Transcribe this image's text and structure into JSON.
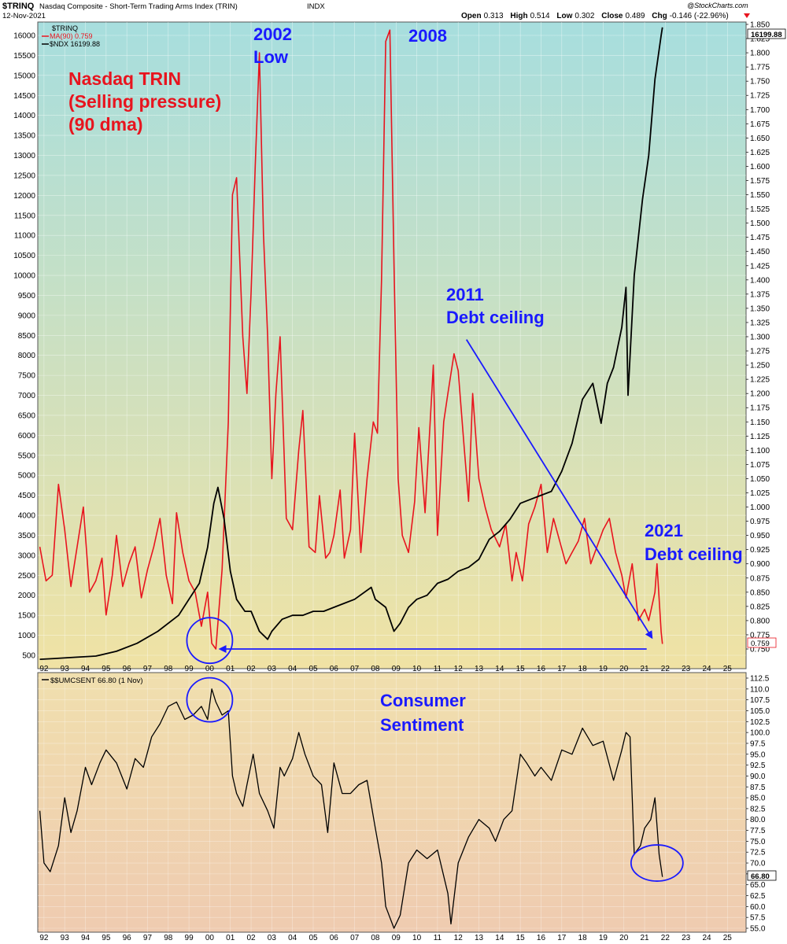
{
  "header": {
    "symbol": "$TRINQ",
    "title": "Nasdaq Composite - Short-Term Trading Arms Index (TRIN)",
    "exchange": "INDX",
    "date": "12-Nov-2021",
    "open_label": "Open",
    "open": "0.313",
    "high_label": "High",
    "high": "0.514",
    "low_label": "Low",
    "low": "0.302",
    "close_label": "Close",
    "close": "0.489",
    "chg_label": "Chg",
    "chg": "-0.146 (-22.96%)",
    "chg_icon": "triangle-down-icon",
    "watermark": "@StockCharts.com"
  },
  "legend_top": {
    "line1": "$TRINQ",
    "line2": "MA(90) 0.759",
    "line3": "$NDX 16199.88"
  },
  "legend_bottom": {
    "line1": "$$UMCSENT 66.80 (1 Nov)"
  },
  "badges": {
    "ndx_last": "16199.88",
    "ma_last": "0.759",
    "umcsent_last": "66.80"
  },
  "annotations": {
    "title_line1": "Nasdaq TRIN",
    "title_line2": "(Selling pressure)",
    "title_line3": "(90 dma)",
    "y2002_line1": "2002",
    "y2002_line2": "Low",
    "y2008": "2008",
    "y2011_line1": "2011",
    "y2011_line2": "Debt ceiling",
    "y2021_line1": "2021",
    "y2021_line2": "Debt ceiling",
    "cs_line1": "Consumer",
    "cs_line2": "Sentiment"
  },
  "colors": {
    "trin_ma": "#e8141e",
    "ndx": "#000000",
    "annotation_blue": "#1a1aff",
    "annotation_red": "#e8141e",
    "top_bg_top": "#a7dede",
    "top_bg_bottom": "#f0e2a4",
    "bottom_bg_top": "#f0dfae",
    "bottom_bg_bottom": "#efcbb0"
  },
  "chart_data": [
    {
      "type": "line",
      "panel": "top",
      "x_tick_labels": [
        "92",
        "93",
        "94",
        "95",
        "96",
        "97",
        "98",
        "99",
        "00",
        "01",
        "02",
        "03",
        "04",
        "05",
        "06",
        "07",
        "08",
        "09",
        "10",
        "11",
        "12",
        "13",
        "14",
        "15",
        "16",
        "17",
        "18",
        "19",
        "20",
        "21",
        "22",
        "23",
        "24",
        "25"
      ],
      "xlim": [
        1991.7,
        2025.9
      ],
      "left_axis": {
        "series": "$NDX",
        "ylim": [
          250,
          16450
        ],
        "ticks": [
          "500",
          "1000",
          "1500",
          "2000",
          "2500",
          "3000",
          "3500",
          "4000",
          "4500",
          "5000",
          "5500",
          "6000",
          "6500",
          "7000",
          "7500",
          "8000",
          "8500",
          "9000",
          "9500",
          "10000",
          "10500",
          "11000",
          "11500",
          "12000",
          "12500",
          "13000",
          "13500",
          "14000",
          "14500",
          "15000",
          "15500",
          "16000"
        ]
      },
      "right_axis": {
        "series": "MA(90)",
        "ylim": [
          0.735,
          1.85
        ],
        "ticks": [
          "0.750",
          "0.775",
          "0.800",
          "0.825",
          "0.850",
          "0.875",
          "0.900",
          "0.925",
          "0.950",
          "0.975",
          "1.000",
          "1.025",
          "1.050",
          "1.075",
          "1.100",
          "1.125",
          "1.150",
          "1.175",
          "1.200",
          "1.225",
          "1.250",
          "1.275",
          "1.300",
          "1.325",
          "1.350",
          "1.375",
          "1.400",
          "1.425",
          "1.450",
          "1.475",
          "1.500",
          "1.525",
          "1.550",
          "1.575",
          "1.600",
          "1.625",
          "1.650",
          "1.675",
          "1.700",
          "1.725",
          "1.750",
          "1.775",
          "1.800",
          "1.825",
          "1.850"
        ]
      },
      "series": [
        {
          "name": "$NDX",
          "axis": "left",
          "x": [
            1991.8,
            1992.5,
            1993.5,
            1994.5,
            1995.5,
            1996.5,
            1997.5,
            1998.5,
            1999.0,
            1999.5,
            1999.9,
            2000.2,
            2000.4,
            2000.7,
            2001.0,
            2001.3,
            2001.7,
            2002.0,
            2002.4,
            2002.8,
            2003.0,
            2003.5,
            2004.0,
            2004.5,
            2005.0,
            2005.5,
            2006.0,
            2006.5,
            2007.0,
            2007.8,
            2008.0,
            2008.5,
            2008.9,
            2009.2,
            2009.6,
            2010.0,
            2010.5,
            2011.0,
            2011.5,
            2012.0,
            2012.5,
            2013.0,
            2013.5,
            2014.0,
            2014.5,
            2015.0,
            2015.5,
            2016.0,
            2016.5,
            2017.0,
            2017.5,
            2018.0,
            2018.5,
            2018.9,
            2019.2,
            2019.5,
            2019.9,
            2020.1,
            2020.2,
            2020.5,
            2020.9,
            2021.2,
            2021.5,
            2021.8,
            2021.86
          ],
          "y": [
            400,
            420,
            450,
            480,
            600,
            800,
            1100,
            1500,
            1900,
            2300,
            3200,
            4300,
            4700,
            3900,
            2600,
            1900,
            1600,
            1600,
            1100,
            900,
            1100,
            1400,
            1500,
            1500,
            1600,
            1600,
            1700,
            1800,
            1900,
            2200,
            1900,
            1700,
            1100,
            1300,
            1700,
            1900,
            2000,
            2300,
            2400,
            2600,
            2700,
            2900,
            3400,
            3600,
            3900,
            4300,
            4400,
            4500,
            4600,
            5100,
            5800,
            6900,
            7300,
            6300,
            7300,
            7700,
            8700,
            9700,
            7000,
            10000,
            11900,
            13000,
            14900,
            16000,
            16199.88
          ]
        },
        {
          "name": "MA(90)",
          "axis": "right",
          "x": [
            1991.8,
            1992.1,
            1992.4,
            1992.7,
            1993.0,
            1993.3,
            1993.6,
            1993.9,
            1994.2,
            1994.5,
            1994.8,
            1995.0,
            1995.3,
            1995.5,
            1995.8,
            1996.1,
            1996.4,
            1996.7,
            1997.0,
            1997.3,
            1997.6,
            1997.9,
            1998.2,
            1998.4,
            1998.7,
            1999.0,
            1999.3,
            1999.6,
            1999.9,
            2000.1,
            2000.3,
            2000.6,
            2000.9,
            2001.1,
            2001.3,
            2001.6,
            2001.8,
            2002.0,
            2002.2,
            2002.4,
            2002.6,
            2002.8,
            2003.0,
            2003.2,
            2003.4,
            2003.7,
            2004.0,
            2004.3,
            2004.5,
            2004.8,
            2005.1,
            2005.3,
            2005.6,
            2005.8,
            2006.0,
            2006.3,
            2006.5,
            2006.8,
            2007.0,
            2007.3,
            2007.6,
            2007.9,
            2008.1,
            2008.3,
            2008.5,
            2008.7,
            2008.9,
            2009.1,
            2009.3,
            2009.6,
            2009.9,
            2010.1,
            2010.4,
            2010.6,
            2010.8,
            2011.0,
            2011.3,
            2011.5,
            2011.8,
            2012.0,
            2012.3,
            2012.5,
            2012.7,
            2013.0,
            2013.3,
            2013.6,
            2014.0,
            2014.3,
            2014.6,
            2014.8,
            2015.1,
            2015.4,
            2015.7,
            2016.0,
            2016.3,
            2016.6,
            2016.9,
            2017.2,
            2017.5,
            2017.8,
            2018.1,
            2018.4,
            2018.7,
            2019.0,
            2019.3,
            2019.6,
            2019.9,
            2020.1,
            2020.4,
            2020.7,
            2021.0,
            2021.2,
            2021.5,
            2021.6,
            2021.8,
            2021.86
          ],
          "y": [
            0.93,
            0.87,
            0.88,
            1.04,
            0.96,
            0.86,
            0.93,
            1.0,
            0.85,
            0.87,
            0.91,
            0.81,
            0.88,
            0.95,
            0.86,
            0.9,
            0.93,
            0.84,
            0.89,
            0.93,
            0.98,
            0.88,
            0.83,
            0.99,
            0.92,
            0.87,
            0.85,
            0.79,
            0.85,
            0.76,
            0.75,
            0.89,
            1.15,
            1.55,
            1.58,
            1.3,
            1.2,
            1.38,
            1.6,
            1.8,
            1.48,
            1.3,
            1.05,
            1.2,
            1.3,
            0.98,
            0.96,
            1.1,
            1.17,
            0.93,
            0.92,
            1.02,
            0.91,
            0.92,
            0.95,
            1.03,
            0.91,
            0.96,
            1.13,
            0.92,
            1.05,
            1.15,
            1.13,
            1.4,
            1.82,
            1.84,
            1.43,
            1.05,
            0.95,
            0.92,
            1.01,
            1.14,
            0.99,
            1.12,
            1.25,
            0.95,
            1.15,
            1.2,
            1.27,
            1.24,
            1.1,
            1.01,
            1.2,
            1.05,
            1.0,
            0.96,
            0.93,
            0.97,
            0.87,
            0.92,
            0.87,
            0.97,
            1.0,
            1.04,
            0.92,
            0.98,
            0.94,
            0.9,
            0.92,
            0.94,
            0.98,
            0.9,
            0.93,
            0.96,
            0.98,
            0.92,
            0.88,
            0.84,
            0.9,
            0.8,
            0.82,
            0.8,
            0.85,
            0.9,
            0.78,
            0.759
          ]
        }
      ],
      "arrows": [
        {
          "from": [
            2012.4,
            1.295
          ],
          "to": [
            2021.35,
            0.77
          ]
        },
        {
          "from": [
            2021.1,
            0.75
          ],
          "to": [
            2000.5,
            0.75
          ]
        }
      ],
      "circles": [
        {
          "cx": 2000.0,
          "cy": 0.765
        }
      ]
    },
    {
      "type": "line",
      "panel": "bottom",
      "x_tick_labels": [
        "92",
        "93",
        "94",
        "95",
        "96",
        "97",
        "98",
        "99",
        "00",
        "01",
        "02",
        "03",
        "04",
        "05",
        "06",
        "07",
        "08",
        "09",
        "10",
        "11",
        "12",
        "13",
        "14",
        "15",
        "16",
        "17",
        "18",
        "19",
        "20",
        "21",
        "22",
        "23",
        "24",
        "25"
      ],
      "xlim": [
        1991.7,
        2025.9
      ],
      "ylim": [
        54.5,
        113
      ],
      "y_ticks": [
        "55.0",
        "57.5",
        "60.0",
        "62.5",
        "65.0",
        "67.5",
        "70.0",
        "72.5",
        "75.0",
        "77.5",
        "80.0",
        "82.5",
        "85.0",
        "87.5",
        "90.0",
        "92.5",
        "95.0",
        "97.5",
        "100.0",
        "102.5",
        "105.0",
        "107.5",
        "110.0",
        "112.5"
      ],
      "series": [
        {
          "name": "$$UMCSENT",
          "x": [
            1991.8,
            1992.0,
            1992.3,
            1992.7,
            1993.0,
            1993.3,
            1993.6,
            1994.0,
            1994.3,
            1994.7,
            1995.0,
            1995.5,
            1996.0,
            1996.4,
            1996.8,
            1997.2,
            1997.6,
            1998.0,
            1998.4,
            1998.8,
            1999.2,
            1999.6,
            1999.9,
            2000.1,
            2000.3,
            2000.6,
            2000.9,
            2001.1,
            2001.3,
            2001.6,
            2001.8,
            2002.1,
            2002.4,
            2002.8,
            2003.1,
            2003.4,
            2003.6,
            2004.0,
            2004.3,
            2004.6,
            2005.0,
            2005.4,
            2005.7,
            2006.0,
            2006.4,
            2006.8,
            2007.2,
            2007.6,
            2008.0,
            2008.3,
            2008.5,
            2008.9,
            2009.2,
            2009.6,
            2010.0,
            2010.5,
            2011.0,
            2011.5,
            2011.65,
            2012.0,
            2012.5,
            2013.0,
            2013.5,
            2013.8,
            2014.2,
            2014.6,
            2015.0,
            2015.3,
            2015.7,
            2016.0,
            2016.5,
            2017.0,
            2017.5,
            2018.0,
            2018.5,
            2019.0,
            2019.5,
            2019.9,
            2020.1,
            2020.3,
            2020.5,
            2020.8,
            2021.0,
            2021.3,
            2021.5,
            2021.7,
            2021.86
          ],
          "y": [
            82,
            70,
            68,
            74,
            85,
            77,
            82,
            92,
            88,
            93,
            96,
            93,
            87,
            94,
            92,
            99,
            102,
            106,
            107,
            103,
            104,
            106,
            103,
            110,
            107,
            104,
            105,
            90,
            86,
            83,
            88,
            95,
            86,
            82,
            78,
            92,
            90,
            94,
            100,
            95,
            90,
            88,
            77,
            93,
            86,
            86,
            88,
            89,
            78,
            70,
            60,
            55,
            58,
            70,
            73,
            71,
            73,
            63,
            56,
            70,
            76,
            80,
            78,
            75,
            80,
            82,
            95,
            93,
            90,
            92,
            89,
            96,
            95,
            101,
            97,
            98,
            89,
            96,
            100,
            99,
            72,
            74,
            78,
            80,
            85,
            72,
            66.8
          ]
        }
      ],
      "circles": [
        {
          "cx": 2000.0,
          "cy": 107.5
        },
        {
          "cx": 2021.6,
          "cy": 70.0
        }
      ]
    }
  ]
}
